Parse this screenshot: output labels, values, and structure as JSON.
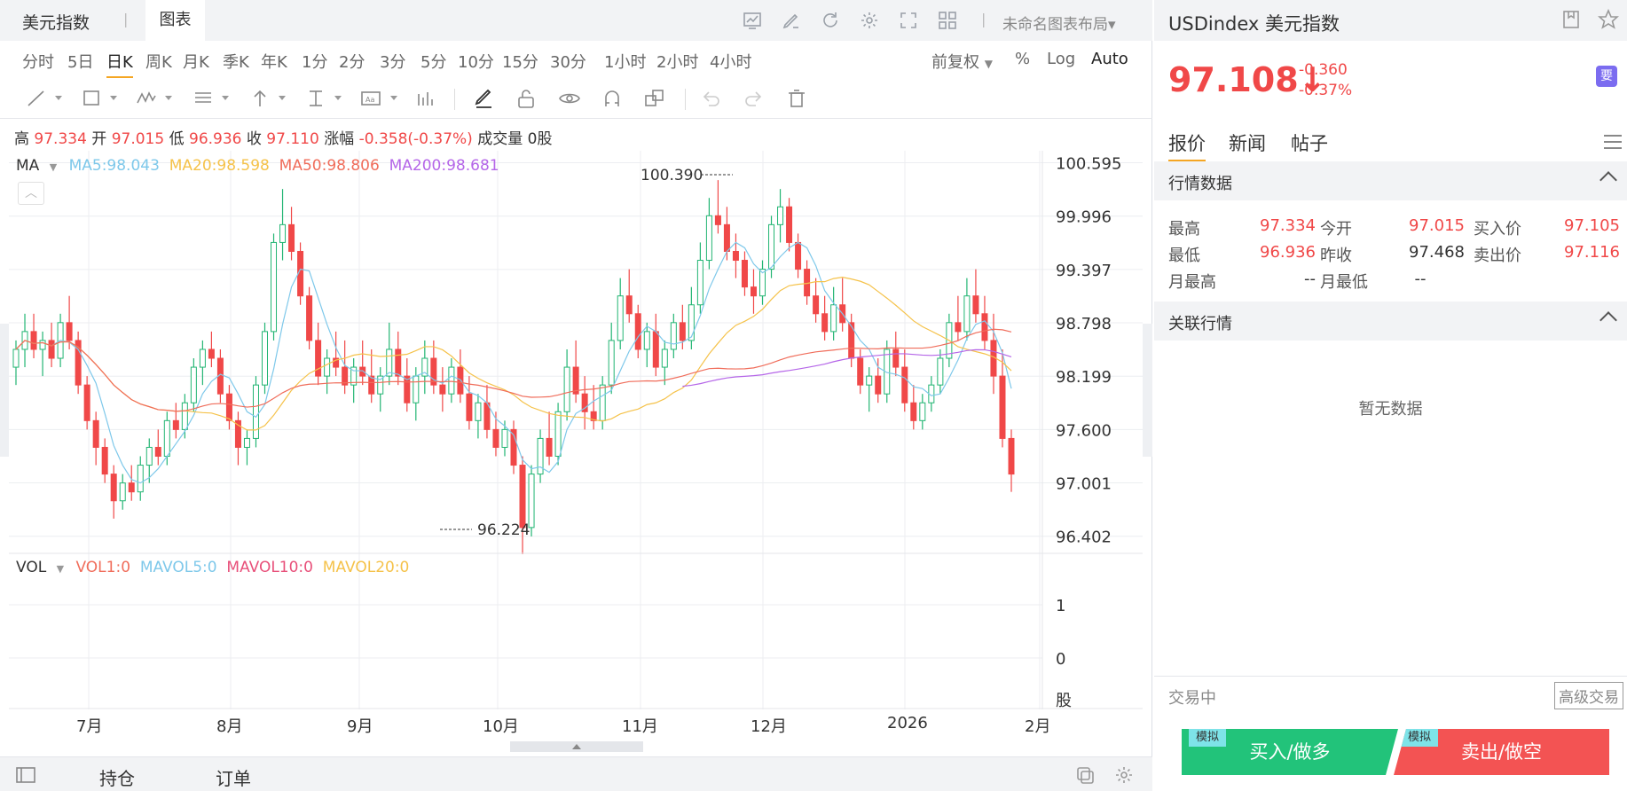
{
  "app_title": "美元指数",
  "tab_chart": "图表",
  "layout_name": "未命名图表布局",
  "periods": [
    "分时",
    "5日",
    "日K",
    "周K",
    "月K",
    "季K",
    "年K",
    "1分",
    "2分",
    "3分",
    "5分",
    "10分",
    "15分",
    "30分",
    "1小时",
    "2小时",
    "4小时"
  ],
  "active_period": "日K",
  "price_adjust": "前复权",
  "percent": "%",
  "log": "Log",
  "auto": "Auto",
  "ohlc": {
    "high_label": "高",
    "high": "97.334",
    "open_label": "开",
    "open": "97.015",
    "low_label": "低",
    "low": "96.936",
    "close_label": "收",
    "close": "97.110",
    "change_label": "涨幅",
    "change": "-0.358(-0.37%)",
    "volume_label": "成交量",
    "volume": "0股"
  },
  "ma_indicator": {
    "name": "MA",
    "ma5": "MA5:98.043",
    "ma20": "MA20:98.598",
    "ma50": "MA50:98.806",
    "ma200": "MA200:98.681"
  },
  "vol_indicator": {
    "name": "VOL",
    "vol1": "VOL1:0",
    "mavol5": "MAVOL5:0",
    "mavol10": "MAVOL10:0",
    "mavol20": "MAVOL20:0"
  },
  "colors": {
    "up": "#22b573",
    "down": "#f04848",
    "ma5": "#7ec8ea",
    "ma20": "#f5c24a",
    "ma50": "#f06d5b",
    "ma200": "#b566e8",
    "accent": "#f5a623"
  },
  "chart_data": {
    "type": "candlestick",
    "y_ticks": [
      "100.595",
      "99.996",
      "99.397",
      "98.798",
      "98.199",
      "97.600",
      "97.001",
      "96.402"
    ],
    "ylim": [
      96.2,
      100.68
    ],
    "x_ticks": [
      "7月",
      "8月",
      "9月",
      "10月",
      "11月",
      "12月",
      "2026",
      "2月"
    ],
    "max_label": "100.390",
    "min_label": "96.224",
    "vol_ticks": [
      "1",
      "0"
    ],
    "vol_unit": "股",
    "candles": [
      [
        98.3,
        98.6,
        98.1,
        98.5
      ],
      [
        98.5,
        98.9,
        98.3,
        98.7
      ],
      [
        98.7,
        98.9,
        98.4,
        98.5
      ],
      [
        98.5,
        98.7,
        98.2,
        98.6
      ],
      [
        98.6,
        98.8,
        98.3,
        98.4
      ],
      [
        98.4,
        98.9,
        98.3,
        98.8
      ],
      [
        98.8,
        99.1,
        98.5,
        98.6
      ],
      [
        98.6,
        98.7,
        98.0,
        98.1
      ],
      [
        98.1,
        98.2,
        97.6,
        97.7
      ],
      [
        97.7,
        97.8,
        97.2,
        97.4
      ],
      [
        97.4,
        97.5,
        97.0,
        97.1
      ],
      [
        97.1,
        97.2,
        96.6,
        96.8
      ],
      [
        96.8,
        97.1,
        96.7,
        97.0
      ],
      [
        97.0,
        97.2,
        96.8,
        96.9
      ],
      [
        96.9,
        97.3,
        96.8,
        97.2
      ],
      [
        97.2,
        97.5,
        97.0,
        97.4
      ],
      [
        97.4,
        97.6,
        97.2,
        97.3
      ],
      [
        97.3,
        97.8,
        97.2,
        97.7
      ],
      [
        97.7,
        97.9,
        97.5,
        97.6
      ],
      [
        97.6,
        98.0,
        97.5,
        97.9
      ],
      [
        97.9,
        98.4,
        97.8,
        98.3
      ],
      [
        98.3,
        98.6,
        98.1,
        98.5
      ],
      [
        98.5,
        98.7,
        98.3,
        98.4
      ],
      [
        98.4,
        98.5,
        97.9,
        98.0
      ],
      [
        98.0,
        98.1,
        97.6,
        97.7
      ],
      [
        97.7,
        97.8,
        97.2,
        97.4
      ],
      [
        97.4,
        97.6,
        97.2,
        97.5
      ],
      [
        97.5,
        98.2,
        97.4,
        98.1
      ],
      [
        98.1,
        98.8,
        98.0,
        98.7
      ],
      [
        98.7,
        99.8,
        98.6,
        99.7
      ],
      [
        99.7,
        100.3,
        99.5,
        99.9
      ],
      [
        99.9,
        100.1,
        99.5,
        99.6
      ],
      [
        99.6,
        99.7,
        99.0,
        99.1
      ],
      [
        99.1,
        99.2,
        98.5,
        98.6
      ],
      [
        98.6,
        98.8,
        98.1,
        98.2
      ],
      [
        98.2,
        98.5,
        98.0,
        98.4
      ],
      [
        98.4,
        98.7,
        98.2,
        98.3
      ],
      [
        98.3,
        98.6,
        98.0,
        98.1
      ],
      [
        98.1,
        98.4,
        97.9,
        98.3
      ],
      [
        98.3,
        98.6,
        98.1,
        98.2
      ],
      [
        98.2,
        98.5,
        97.9,
        98.0
      ],
      [
        98.0,
        98.3,
        97.8,
        98.2
      ],
      [
        98.2,
        98.8,
        98.1,
        98.5
      ],
      [
        98.5,
        98.7,
        98.1,
        98.2
      ],
      [
        98.2,
        98.4,
        97.8,
        97.9
      ],
      [
        97.9,
        98.3,
        97.7,
        98.2
      ],
      [
        98.2,
        98.6,
        98.0,
        98.4
      ],
      [
        98.4,
        98.6,
        98.0,
        98.1
      ],
      [
        98.1,
        98.3,
        97.8,
        98.0
      ],
      [
        98.0,
        98.4,
        97.9,
        98.3
      ],
      [
        98.3,
        98.5,
        97.9,
        98.0
      ],
      [
        98.0,
        98.2,
        97.6,
        97.7
      ],
      [
        97.7,
        98.0,
        97.5,
        97.9
      ],
      [
        97.9,
        98.1,
        97.5,
        97.6
      ],
      [
        97.6,
        97.8,
        97.3,
        97.4
      ],
      [
        97.4,
        97.7,
        97.3,
        97.6
      ],
      [
        97.6,
        97.7,
        97.1,
        97.2
      ],
      [
        97.2,
        97.3,
        96.2,
        96.5
      ],
      [
        96.5,
        97.2,
        96.4,
        97.1
      ],
      [
        97.1,
        97.6,
        97.0,
        97.5
      ],
      [
        97.5,
        97.8,
        97.2,
        97.3
      ],
      [
        97.3,
        97.9,
        97.2,
        97.8
      ],
      [
        97.8,
        98.5,
        97.7,
        98.3
      ],
      [
        98.3,
        98.6,
        97.9,
        98.0
      ],
      [
        98.0,
        98.2,
        97.6,
        97.8
      ],
      [
        97.8,
        98.1,
        97.6,
        97.7
      ],
      [
        97.7,
        98.2,
        97.6,
        98.1
      ],
      [
        98.1,
        98.8,
        98.0,
        98.6
      ],
      [
        98.6,
        99.3,
        98.5,
        99.1
      ],
      [
        99.1,
        99.4,
        98.8,
        98.9
      ],
      [
        98.9,
        99.0,
        98.4,
        98.5
      ],
      [
        98.5,
        98.8,
        98.3,
        98.7
      ],
      [
        98.7,
        98.9,
        98.2,
        98.3
      ],
      [
        98.3,
        98.6,
        98.1,
        98.5
      ],
      [
        98.5,
        98.9,
        98.4,
        98.8
      ],
      [
        98.8,
        99.0,
        98.5,
        98.6
      ],
      [
        98.6,
        99.2,
        98.5,
        99.0
      ],
      [
        99.0,
        99.7,
        98.9,
        99.5
      ],
      [
        99.5,
        100.2,
        99.4,
        100.0
      ],
      [
        100.0,
        100.4,
        99.8,
        99.9
      ],
      [
        99.9,
        100.1,
        99.5,
        99.6
      ],
      [
        99.6,
        99.8,
        99.3,
        99.5
      ],
      [
        99.5,
        99.6,
        99.1,
        99.2
      ],
      [
        99.2,
        99.4,
        98.9,
        99.1
      ],
      [
        99.1,
        99.5,
        99.0,
        99.4
      ],
      [
        99.4,
        100.0,
        99.3,
        99.9
      ],
      [
        99.9,
        100.3,
        99.7,
        100.1
      ],
      [
        100.1,
        100.2,
        99.6,
        99.7
      ],
      [
        99.7,
        99.8,
        99.3,
        99.4
      ],
      [
        99.4,
        99.5,
        99.0,
        99.1
      ],
      [
        99.1,
        99.3,
        98.8,
        98.9
      ],
      [
        98.9,
        99.1,
        98.6,
        98.7
      ],
      [
        98.7,
        99.2,
        98.6,
        99.0
      ],
      [
        99.0,
        99.3,
        98.7,
        98.8
      ],
      [
        98.8,
        98.9,
        98.3,
        98.4
      ],
      [
        98.4,
        98.5,
        98.0,
        98.1
      ],
      [
        98.1,
        98.3,
        97.8,
        98.2
      ],
      [
        98.2,
        98.4,
        97.9,
        98.0
      ],
      [
        98.0,
        98.6,
        97.9,
        98.5
      ],
      [
        98.5,
        98.7,
        98.2,
        98.3
      ],
      [
        98.3,
        98.5,
        97.8,
        97.9
      ],
      [
        97.9,
        98.1,
        97.6,
        97.7
      ],
      [
        97.7,
        98.0,
        97.6,
        97.9
      ],
      [
        97.9,
        98.2,
        97.8,
        98.1
      ],
      [
        98.1,
        98.5,
        98.0,
        98.4
      ],
      [
        98.4,
        98.9,
        98.3,
        98.8
      ],
      [
        98.8,
        99.1,
        98.6,
        98.7
      ],
      [
        98.7,
        99.3,
        98.6,
        99.1
      ],
      [
        99.1,
        99.4,
        98.8,
        98.9
      ],
      [
        98.9,
        99.1,
        98.5,
        98.6
      ],
      [
        98.6,
        98.9,
        98.0,
        98.2
      ],
      [
        98.2,
        98.5,
        97.4,
        97.5
      ],
      [
        97.5,
        97.6,
        96.9,
        97.1
      ]
    ]
  },
  "right": {
    "symbol": "USDindex 美元指数",
    "price": "97.108",
    "arrow": "↓",
    "change": "-0.360",
    "change_pct": "-0.37%",
    "badge": "要",
    "tabs": [
      "报价",
      "新闻",
      "帖子"
    ],
    "section_quote": "行情数据",
    "quote": {
      "high_label": "最高",
      "high": "97.334",
      "open_label": "今开",
      "open": "97.015",
      "bid_label": "买入价",
      "bid": "97.105",
      "low_label": "最低",
      "low": "96.936",
      "prev_label": "昨收",
      "prev": "97.468",
      "ask_label": "卖出价",
      "ask": "97.116",
      "mhigh_label": "月最高",
      "mhigh": "--",
      "mlow_label": "月最低",
      "mlow": "--"
    },
    "section_related": "关联行情",
    "no_data": "暂无数据",
    "trading": "交易中",
    "advanced": "高级交易",
    "buy": "买入/做多",
    "sell": "卖出/做空",
    "mock": "模拟"
  },
  "bottom": {
    "positions": "持仓",
    "orders": "订单"
  }
}
